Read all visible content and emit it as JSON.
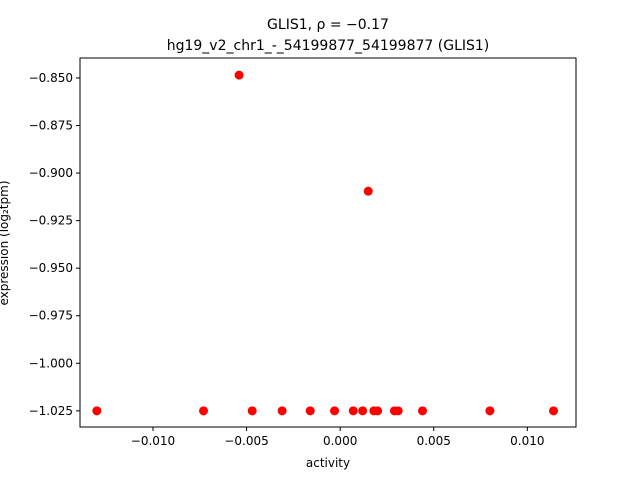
{
  "chart_data": {
    "type": "scatter",
    "title_lines": [
      "GLIS1, ρ = −0.17",
      "hg19_v2_chr1_-_54199877_54199877 (GLIS1)"
    ],
    "xlabel": "activity",
    "ylabel": "expression (log₂tpm)",
    "xlim": [
      -0.0139,
      0.0126
    ],
    "ylim": [
      -1.0335,
      -0.8395
    ],
    "xticks": [
      -0.01,
      -0.005,
      0.0,
      0.005,
      0.01
    ],
    "xtick_labels": [
      "−0.010",
      "−0.005",
      "0.000",
      "0.005",
      "0.010"
    ],
    "yticks": [
      -0.85,
      -0.875,
      -0.9,
      -0.925,
      -0.95,
      -0.975,
      -1.0,
      -1.025
    ],
    "ytick_labels": [
      "−0.850",
      "−0.875",
      "−0.900",
      "−0.925",
      "−0.950",
      "−0.975",
      "−1.000",
      "−1.025"
    ],
    "grid": false,
    "marker_color": "#ff0000",
    "points": [
      {
        "x": -0.0054,
        "y": -0.8485
      },
      {
        "x": 0.0015,
        "y": -0.9095
      },
      {
        "x": -0.013,
        "y": -1.025
      },
      {
        "x": -0.0073,
        "y": -1.025
      },
      {
        "x": -0.0047,
        "y": -1.025
      },
      {
        "x": -0.0031,
        "y": -1.025
      },
      {
        "x": -0.0016,
        "y": -1.025
      },
      {
        "x": -0.0003,
        "y": -1.025
      },
      {
        "x": 0.0007,
        "y": -1.025
      },
      {
        "x": 0.0012,
        "y": -1.025
      },
      {
        "x": 0.0018,
        "y": -1.025
      },
      {
        "x": 0.002,
        "y": -1.025
      },
      {
        "x": 0.0029,
        "y": -1.025
      },
      {
        "x": 0.0031,
        "y": -1.025
      },
      {
        "x": 0.0044,
        "y": -1.025
      },
      {
        "x": 0.008,
        "y": -1.025
      },
      {
        "x": 0.0114,
        "y": -1.025
      }
    ]
  }
}
